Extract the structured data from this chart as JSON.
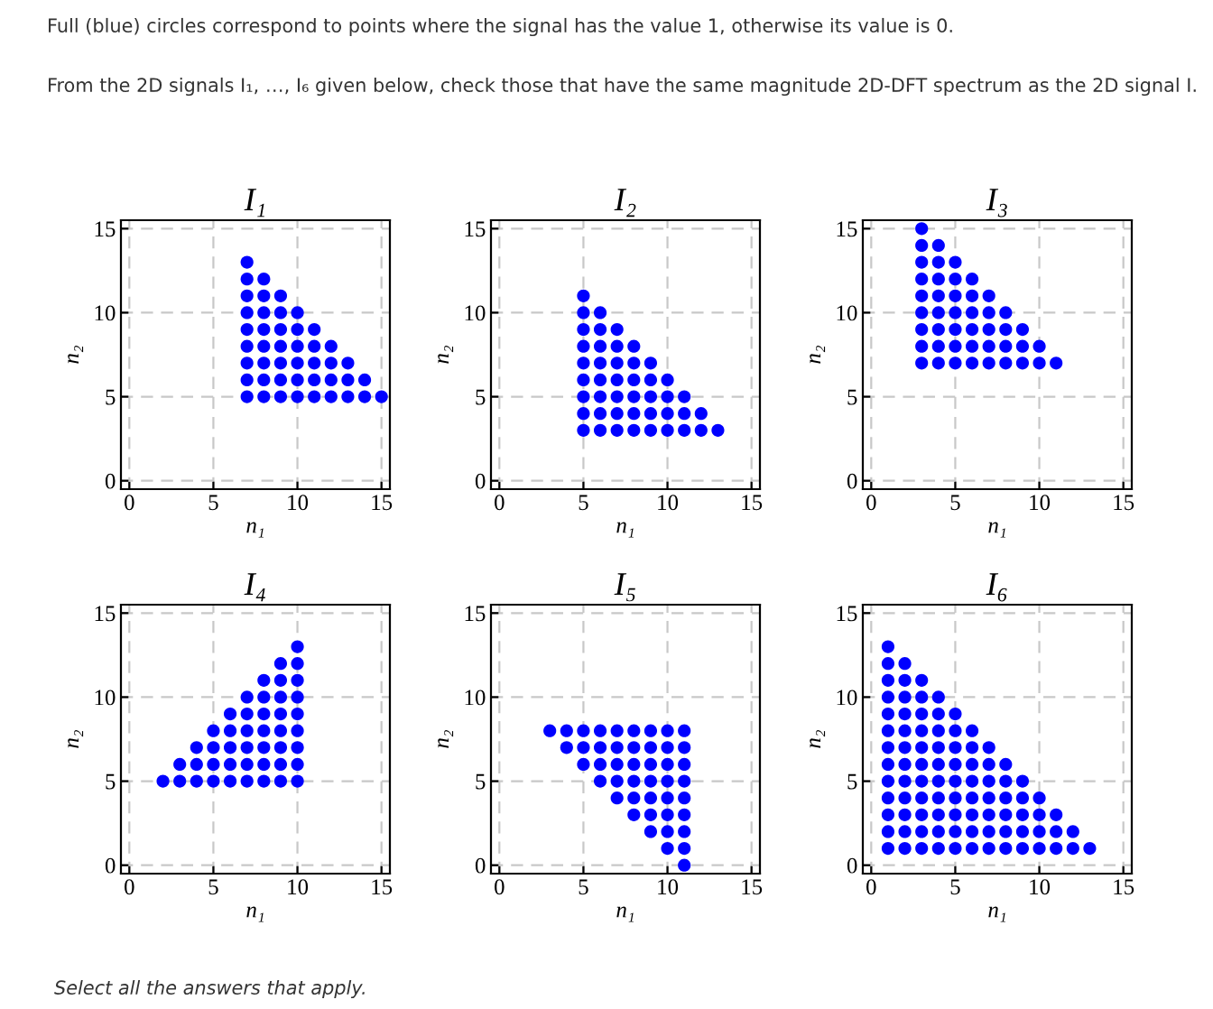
{
  "chart_data": [
    {
      "type": "scatter",
      "title": "I₁",
      "xlabel": "n₁",
      "ylabel": "n₂",
      "xlim": [
        -0.5,
        15.5
      ],
      "ylim": [
        -0.5,
        15.5
      ],
      "xticks": [
        0,
        5,
        10,
        15
      ],
      "yticks": [
        0,
        5,
        10,
        15
      ],
      "grid": true,
      "marker": "circle",
      "annotations": [
        "Full (blue) circles correspond to points where the signal has the value 1, otherwise its value is 0.",
        "From the 2D signals I₁, …, I₆ given below, check those that have the same magnitude 2D-DFT spectrum as the 2D signal I."
      ],
      "series": [
        {
          "color": "#0000ff",
          "x": [
            7,
            8,
            9,
            10,
            11,
            12,
            13,
            14,
            15
          ],
          "values": [
            5,
            5,
            5,
            5,
            5,
            5,
            5,
            5,
            5
          ]
        },
        {
          "color": "#0000ff",
          "x": [
            7,
            8,
            9,
            10,
            11,
            12,
            13,
            14
          ],
          "values": [
            6,
            6,
            6,
            6,
            6,
            6,
            6,
            6
          ]
        },
        {
          "color": "#0000ff",
          "x": [
            7,
            8,
            9,
            10,
            11,
            12,
            13
          ],
          "values": [
            7,
            7,
            7,
            7,
            7,
            7,
            7
          ]
        },
        {
          "color": "#0000ff",
          "x": [
            7,
            8,
            9,
            10,
            11,
            12
          ],
          "values": [
            8,
            8,
            8,
            8,
            8,
            8
          ]
        },
        {
          "color": "#0000ff",
          "x": [
            7,
            8,
            9,
            10,
            11
          ],
          "values": [
            9,
            9,
            9,
            9,
            9
          ]
        },
        {
          "color": "#0000ff",
          "x": [
            7,
            8,
            9,
            10
          ],
          "values": [
            10,
            10,
            10,
            10
          ]
        },
        {
          "color": "#0000ff",
          "x": [
            7,
            8,
            9
          ],
          "values": [
            11,
            11,
            11
          ]
        },
        {
          "color": "#0000ff",
          "x": [
            7,
            8
          ],
          "values": [
            12,
            12
          ]
        },
        {
          "color": "#0000ff",
          "x": [
            7
          ],
          "values": [
            13
          ]
        }
      ]
    },
    {
      "type": "scatter",
      "title": "I₂",
      "xlabel": "n₁",
      "ylabel": "n₂",
      "xlim": [
        -0.5,
        15.5
      ],
      "ylim": [
        -0.5,
        15.5
      ],
      "xticks": [
        0,
        5,
        10,
        15
      ],
      "yticks": [
        0,
        5,
        10,
        15
      ],
      "grid": true,
      "marker": "circle",
      "series": [
        {
          "color": "#0000ff",
          "x": [
            5,
            6,
            7,
            8,
            9,
            10,
            11,
            12,
            13
          ],
          "values": [
            3,
            3,
            3,
            3,
            3,
            3,
            3,
            3,
            3
          ]
        },
        {
          "color": "#0000ff",
          "x": [
            5,
            6,
            7,
            8,
            9,
            10,
            11,
            12
          ],
          "values": [
            4,
            4,
            4,
            4,
            4,
            4,
            4,
            4
          ]
        },
        {
          "color": "#0000ff",
          "x": [
            5,
            6,
            7,
            8,
            9,
            10,
            11
          ],
          "values": [
            5,
            5,
            5,
            5,
            5,
            5,
            5
          ]
        },
        {
          "color": "#0000ff",
          "x": [
            5,
            6,
            7,
            8,
            9,
            10
          ],
          "values": [
            6,
            6,
            6,
            6,
            6,
            6
          ]
        },
        {
          "color": "#0000ff",
          "x": [
            5,
            6,
            7,
            8,
            9
          ],
          "values": [
            7,
            7,
            7,
            7,
            7
          ]
        },
        {
          "color": "#0000ff",
          "x": [
            5,
            6,
            7,
            8
          ],
          "values": [
            8,
            8,
            8,
            8
          ]
        },
        {
          "color": "#0000ff",
          "x": [
            5,
            6,
            7
          ],
          "values": [
            9,
            9,
            9
          ]
        },
        {
          "color": "#0000ff",
          "x": [
            5,
            6
          ],
          "values": [
            10,
            10
          ]
        },
        {
          "color": "#0000ff",
          "x": [
            5
          ],
          "values": [
            11
          ]
        }
      ]
    },
    {
      "type": "scatter",
      "title": "I₃",
      "xlabel": "n₁",
      "ylabel": "n₂",
      "xlim": [
        -0.5,
        15.5
      ],
      "ylim": [
        -0.5,
        15.5
      ],
      "xticks": [
        0,
        5,
        10,
        15
      ],
      "yticks": [
        0,
        5,
        10,
        15
      ],
      "grid": true,
      "marker": "circle",
      "series": [
        {
          "color": "#0000ff",
          "x": [
            3,
            4,
            5,
            6,
            7,
            8,
            9,
            10,
            11
          ],
          "values": [
            7,
            7,
            7,
            7,
            7,
            7,
            7,
            7,
            7
          ]
        },
        {
          "color": "#0000ff",
          "x": [
            3,
            4,
            5,
            6,
            7,
            8,
            9,
            10
          ],
          "values": [
            8,
            8,
            8,
            8,
            8,
            8,
            8,
            8
          ]
        },
        {
          "color": "#0000ff",
          "x": [
            3,
            4,
            5,
            6,
            7,
            8,
            9
          ],
          "values": [
            9,
            9,
            9,
            9,
            9,
            9,
            9
          ]
        },
        {
          "color": "#0000ff",
          "x": [
            3,
            4,
            5,
            6,
            7,
            8
          ],
          "values": [
            10,
            10,
            10,
            10,
            10,
            10
          ]
        },
        {
          "color": "#0000ff",
          "x": [
            3,
            4,
            5,
            6,
            7
          ],
          "values": [
            11,
            11,
            11,
            11,
            11
          ]
        },
        {
          "color": "#0000ff",
          "x": [
            3,
            4,
            5,
            6
          ],
          "values": [
            12,
            12,
            12,
            12
          ]
        },
        {
          "color": "#0000ff",
          "x": [
            3,
            4,
            5
          ],
          "values": [
            13,
            13,
            13
          ]
        },
        {
          "color": "#0000ff",
          "x": [
            3,
            4
          ],
          "values": [
            14,
            14
          ]
        },
        {
          "color": "#0000ff",
          "x": [
            3
          ],
          "values": [
            15
          ]
        }
      ]
    },
    {
      "type": "scatter",
      "title": "I₄",
      "xlabel": "n₁",
      "ylabel": "n₂",
      "xlim": [
        -0.5,
        15.5
      ],
      "ylim": [
        -0.5,
        15.5
      ],
      "xticks": [
        0,
        5,
        10,
        15
      ],
      "yticks": [
        0,
        5,
        10,
        15
      ],
      "grid": true,
      "marker": "circle",
      "series": [
        {
          "color": "#0000ff",
          "x": [
            2,
            3,
            4,
            5,
            6,
            7,
            8,
            9,
            10
          ],
          "values": [
            5,
            5,
            5,
            5,
            5,
            5,
            5,
            5,
            5
          ]
        },
        {
          "color": "#0000ff",
          "x": [
            3,
            4,
            5,
            6,
            7,
            8,
            9,
            10
          ],
          "values": [
            6,
            6,
            6,
            6,
            6,
            6,
            6,
            6
          ]
        },
        {
          "color": "#0000ff",
          "x": [
            4,
            5,
            6,
            7,
            8,
            9,
            10
          ],
          "values": [
            7,
            7,
            7,
            7,
            7,
            7,
            7
          ]
        },
        {
          "color": "#0000ff",
          "x": [
            5,
            6,
            7,
            8,
            9,
            10
          ],
          "values": [
            8,
            8,
            8,
            8,
            8,
            8
          ]
        },
        {
          "color": "#0000ff",
          "x": [
            6,
            7,
            8,
            9,
            10
          ],
          "values": [
            9,
            9,
            9,
            9,
            9
          ]
        },
        {
          "color": "#0000ff",
          "x": [
            7,
            8,
            9,
            10
          ],
          "values": [
            10,
            10,
            10,
            10
          ]
        },
        {
          "color": "#0000ff",
          "x": [
            8,
            9,
            10
          ],
          "values": [
            11,
            11,
            11
          ]
        },
        {
          "color": "#0000ff",
          "x": [
            9,
            10
          ],
          "values": [
            12,
            12
          ]
        },
        {
          "color": "#0000ff",
          "x": [
            10
          ],
          "values": [
            13
          ]
        }
      ]
    },
    {
      "type": "scatter",
      "title": "I₅",
      "xlabel": "n₁",
      "ylabel": "n₂",
      "xlim": [
        -0.5,
        15.5
      ],
      "ylim": [
        -0.5,
        15.5
      ],
      "xticks": [
        0,
        5,
        10,
        15
      ],
      "yticks": [
        0,
        5,
        10,
        15
      ],
      "grid": true,
      "marker": "circle",
      "series": [
        {
          "color": "#0000ff",
          "x": [
            3,
            4,
            5,
            6,
            7,
            8,
            9,
            10,
            11
          ],
          "values": [
            8,
            8,
            8,
            8,
            8,
            8,
            8,
            8,
            8
          ]
        },
        {
          "color": "#0000ff",
          "x": [
            4,
            5,
            6,
            7,
            8,
            9,
            10,
            11
          ],
          "values": [
            7,
            7,
            7,
            7,
            7,
            7,
            7,
            7
          ]
        },
        {
          "color": "#0000ff",
          "x": [
            5,
            6,
            7,
            8,
            9,
            10,
            11
          ],
          "values": [
            6,
            6,
            6,
            6,
            6,
            6,
            6
          ]
        },
        {
          "color": "#0000ff",
          "x": [
            6,
            7,
            8,
            9,
            10,
            11
          ],
          "values": [
            5,
            5,
            5,
            5,
            5,
            5
          ]
        },
        {
          "color": "#0000ff",
          "x": [
            7,
            8,
            9,
            10,
            11
          ],
          "values": [
            4,
            4,
            4,
            4,
            4
          ]
        },
        {
          "color": "#0000ff",
          "x": [
            8,
            9,
            10,
            11
          ],
          "values": [
            3,
            3,
            3,
            3
          ]
        },
        {
          "color": "#0000ff",
          "x": [
            9,
            10,
            11
          ],
          "values": [
            2,
            2,
            2
          ]
        },
        {
          "color": "#0000ff",
          "x": [
            10,
            11
          ],
          "values": [
            1,
            1
          ]
        },
        {
          "color": "#0000ff",
          "x": [
            11
          ],
          "values": [
            0
          ]
        }
      ]
    },
    {
      "type": "scatter",
      "title": "I₆",
      "xlabel": "n₁",
      "ylabel": "n₂",
      "xlim": [
        -0.5,
        15.5
      ],
      "ylim": [
        -0.5,
        15.5
      ],
      "xticks": [
        0,
        5,
        10,
        15
      ],
      "yticks": [
        0,
        5,
        10,
        15
      ],
      "grid": true,
      "marker": "circle",
      "annotations": [
        "Select all the answers that apply."
      ],
      "series": [
        {
          "color": "#0000ff",
          "x": [
            1,
            2,
            3,
            4,
            5,
            6,
            7,
            8,
            9,
            10,
            11,
            12,
            13
          ],
          "values": [
            1,
            1,
            1,
            1,
            1,
            1,
            1,
            1,
            1,
            1,
            1,
            1,
            1
          ]
        },
        {
          "color": "#0000ff",
          "x": [
            1,
            2,
            3,
            4,
            5,
            6,
            7,
            8,
            9,
            10,
            11,
            12
          ],
          "values": [
            2,
            2,
            2,
            2,
            2,
            2,
            2,
            2,
            2,
            2,
            2,
            2
          ]
        },
        {
          "color": "#0000ff",
          "x": [
            1,
            2,
            3,
            4,
            5,
            6,
            7,
            8,
            9,
            10,
            11
          ],
          "values": [
            3,
            3,
            3,
            3,
            3,
            3,
            3,
            3,
            3,
            3,
            3
          ]
        },
        {
          "color": "#0000ff",
          "x": [
            1,
            2,
            3,
            4,
            5,
            6,
            7,
            8,
            9,
            10
          ],
          "values": [
            4,
            4,
            4,
            4,
            4,
            4,
            4,
            4,
            4,
            4
          ]
        },
        {
          "color": "#0000ff",
          "x": [
            1,
            2,
            3,
            4,
            5,
            6,
            7,
            8,
            9
          ],
          "values": [
            5,
            5,
            5,
            5,
            5,
            5,
            5,
            5,
            5
          ]
        },
        {
          "color": "#0000ff",
          "x": [
            1,
            2,
            3,
            4,
            5,
            6,
            7,
            8
          ],
          "values": [
            6,
            6,
            6,
            6,
            6,
            6,
            6,
            6
          ]
        },
        {
          "color": "#0000ff",
          "x": [
            1,
            2,
            3,
            4,
            5,
            6,
            7
          ],
          "values": [
            7,
            7,
            7,
            7,
            7,
            7,
            7
          ]
        },
        {
          "color": "#0000ff",
          "x": [
            1,
            2,
            3,
            4,
            5,
            6
          ],
          "values": [
            8,
            8,
            8,
            8,
            8,
            8
          ]
        },
        {
          "color": "#0000ff",
          "x": [
            1,
            2,
            3,
            4,
            5
          ],
          "values": [
            9,
            9,
            9,
            9,
            9
          ]
        },
        {
          "color": "#0000ff",
          "x": [
            1,
            2,
            3,
            4
          ],
          "values": [
            10,
            10,
            10,
            10
          ]
        },
        {
          "color": "#0000ff",
          "x": [
            1,
            2,
            3
          ],
          "values": [
            11,
            11,
            11
          ]
        },
        {
          "color": "#0000ff",
          "x": [
            1,
            2
          ],
          "values": [
            12,
            12
          ]
        },
        {
          "color": "#0000ff",
          "x": [
            1
          ],
          "values": [
            13
          ]
        }
      ]
    }
  ]
}
